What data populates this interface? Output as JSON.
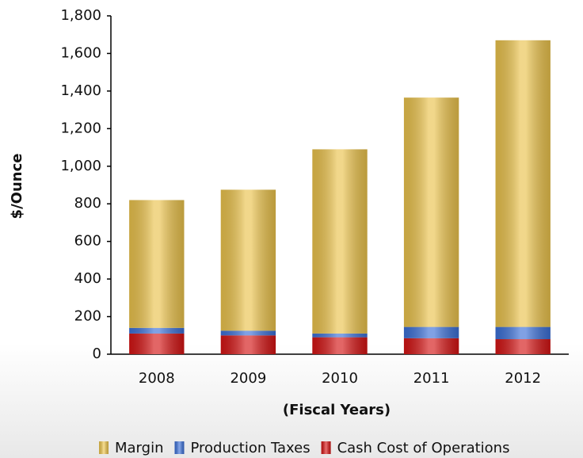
{
  "chart_data": {
    "type": "stacked_bar",
    "categories": [
      "2008",
      "2009",
      "2010",
      "2011",
      "2012"
    ],
    "series": [
      {
        "name": "Cash Cost of Operations",
        "color": "#d31414",
        "values": [
          110,
          100,
          90,
          85,
          80
        ]
      },
      {
        "name": "Production Taxes",
        "color": "#3b6fd6",
        "values": [
          30,
          25,
          20,
          60,
          65
        ]
      },
      {
        "name": "Margin",
        "color": "#eac24c",
        "values": [
          680,
          750,
          980,
          1220,
          1525
        ]
      }
    ],
    "legend_order": [
      2,
      1,
      0
    ],
    "ylabel": "$/Ounce",
    "xlabel": "(Fiscal Years)",
    "ylim": [
      0,
      1800
    ],
    "yticks": [
      0,
      200,
      400,
      600,
      800,
      {
        "value": 1000,
        "label": "1,000"
      },
      {
        "value": 1200,
        "label": "1,200"
      },
      {
        "value": 1400,
        "label": "1,400"
      },
      {
        "value": 1600,
        "label": "1,600"
      },
      {
        "value": 1800,
        "label": "1,800"
      }
    ],
    "legend": "bottom-right"
  }
}
